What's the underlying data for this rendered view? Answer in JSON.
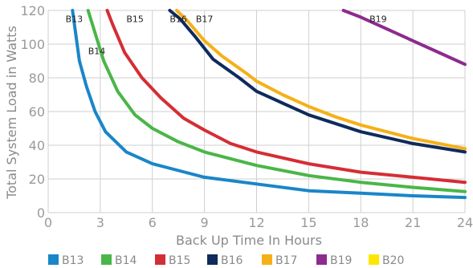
{
  "chart_data": {
    "type": "line",
    "xlabel": "Back Up Time In Hours",
    "ylabel": "Total System Load in Watts",
    "xlim": [
      0,
      24
    ],
    "ylim": [
      0,
      120
    ],
    "xticks": [
      0,
      3,
      6,
      9,
      12,
      15,
      18,
      21,
      24
    ],
    "yticks": [
      0,
      20,
      40,
      60,
      80,
      100,
      120
    ],
    "grid": true,
    "legend_position": "bottom",
    "series": [
      {
        "name": "B13",
        "color": "#1a86c8",
        "label_at": [
          1.0,
          113
        ],
        "points": [
          [
            1.4,
            120
          ],
          [
            1.8,
            90
          ],
          [
            2.2,
            75
          ],
          [
            2.7,
            60
          ],
          [
            3.3,
            48
          ],
          [
            4.5,
            36
          ],
          [
            6,
            29
          ],
          [
            7.5,
            25
          ],
          [
            9,
            21
          ],
          [
            12,
            17
          ],
          [
            15,
            13
          ],
          [
            18,
            11.5
          ],
          [
            21,
            10
          ],
          [
            24,
            9
          ]
        ]
      },
      {
        "name": "B14",
        "color": "#4ab649",
        "label_at": [
          2.3,
          94
        ],
        "points": [
          [
            2.3,
            120
          ],
          [
            2.6,
            110
          ],
          [
            3.2,
            90
          ],
          [
            4,
            72
          ],
          [
            5,
            58
          ],
          [
            6,
            50
          ],
          [
            7.5,
            42
          ],
          [
            9,
            36
          ],
          [
            12,
            28
          ],
          [
            15,
            22
          ],
          [
            18,
            18
          ],
          [
            21,
            15
          ],
          [
            24,
            12.5
          ]
        ]
      },
      {
        "name": "B15",
        "color": "#d42e35",
        "label_at": [
          4.5,
          113
        ],
        "points": [
          [
            3.4,
            120
          ],
          [
            3.7,
            112
          ],
          [
            4.4,
            95
          ],
          [
            5.4,
            80
          ],
          [
            6.5,
            68
          ],
          [
            7.8,
            56
          ],
          [
            9,
            49
          ],
          [
            10.5,
            41
          ],
          [
            12,
            36
          ],
          [
            15,
            29
          ],
          [
            18,
            24
          ],
          [
            21,
            21
          ],
          [
            24,
            18
          ]
        ]
      },
      {
        "name": "B16",
        "color": "#0f2a5c",
        "label_at": [
          7.0,
          113
        ],
        "points": [
          [
            7,
            120
          ],
          [
            7.6,
            115
          ],
          [
            8.5,
            104
          ],
          [
            9.5,
            91
          ],
          [
            11,
            80
          ],
          [
            12,
            72
          ],
          [
            13.5,
            65
          ],
          [
            15,
            58
          ],
          [
            16.5,
            53
          ],
          [
            18,
            48
          ],
          [
            21,
            41
          ],
          [
            24,
            36
          ]
        ]
      },
      {
        "name": "B17",
        "color": "#f6b017",
        "label_at": [
          8.5,
          113
        ],
        "points": [
          [
            7.4,
            120
          ],
          [
            8,
            114
          ],
          [
            9,
            102
          ],
          [
            10,
            93
          ],
          [
            11.5,
            82
          ],
          [
            12,
            78
          ],
          [
            13.5,
            70
          ],
          [
            15,
            63
          ],
          [
            16.5,
            57
          ],
          [
            18,
            52
          ],
          [
            21,
            44
          ],
          [
            24,
            38
          ]
        ]
      },
      {
        "name": "B19",
        "color": "#8d2b8e",
        "label_at": [
          18.5,
          113
        ],
        "points": [
          [
            17,
            120
          ],
          [
            18,
            116
          ],
          [
            19.5,
            109
          ],
          [
            21,
            102
          ],
          [
            22.5,
            95
          ],
          [
            24,
            88
          ]
        ]
      },
      {
        "name": "B20",
        "color": "#ffe600",
        "points": []
      }
    ]
  }
}
